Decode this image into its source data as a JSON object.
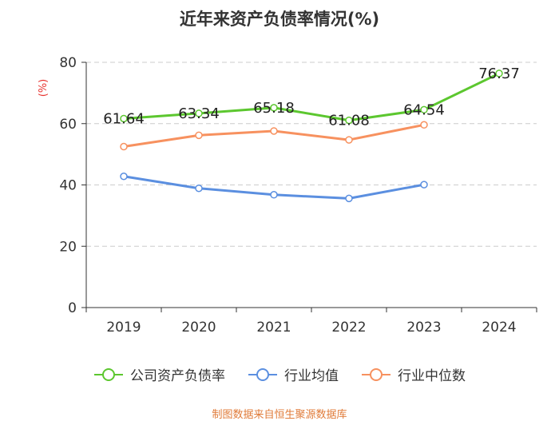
{
  "chart_data": {
    "type": "line",
    "title": "近年来资产负债率情况(%)",
    "ylabel": "(%)",
    "xlabel": "",
    "categories": [
      "2019",
      "2020",
      "2021",
      "2022",
      "2023",
      "2024"
    ],
    "ylim": [
      0,
      80
    ],
    "yticks": [
      0,
      20,
      40,
      60,
      80
    ],
    "grid": true,
    "legend_position": "bottom",
    "series": [
      {
        "name": "公司资产负债率",
        "color": "#5cc72f",
        "values": [
          61.64,
          63.34,
          65.18,
          61.08,
          64.54,
          76.37
        ],
        "show_labels": true
      },
      {
        "name": "行业均值",
        "color": "#5b8fe0",
        "values": [
          42.8,
          38.9,
          36.8,
          35.6,
          40.1,
          null
        ],
        "show_labels": false
      },
      {
        "name": "行业中位数",
        "color": "#f7915f",
        "values": [
          52.5,
          56.2,
          57.6,
          54.7,
          59.6,
          null
        ],
        "show_labels": false
      }
    ]
  },
  "footer": {
    "source": "制图数据来自恒生聚源数据库"
  }
}
